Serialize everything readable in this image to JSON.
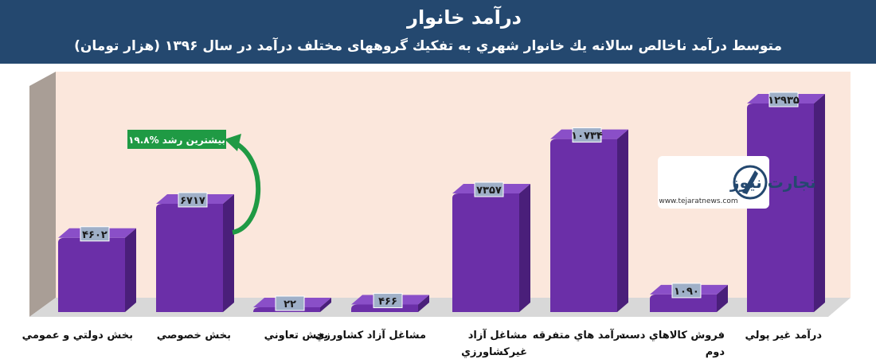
{
  "header": {
    "title": "درآمد خانوار",
    "subtitle": "متوسط درآمد ناخالص سالانه يك خانوار شهري به تفكيك گروههای مختلف درآمد در سال ۱۳۹۶ (هزار تومان)"
  },
  "colors": {
    "header_bg": "#24486f",
    "bar_front": "#6b2fa8",
    "bar_side": "#4a1f7a",
    "bar_top": "#8a4fc8",
    "back_wall": "#fbe7dc",
    "side_wall": "#a99e96",
    "floor": "#d8d8d8",
    "label_box": "#9fb0c8",
    "arrow": "#1f9a44"
  },
  "annotation": {
    "text": "بیشترین رشد %۱۹.۸"
  },
  "logo": {
    "text": "تجارت نیوز",
    "url": "www.tejaratnews.com"
  },
  "chart_data": {
    "type": "bar",
    "title": "درآمد خانوار",
    "subtitle": "متوسط درآمد ناخالص سالانه يك خانوار شهري به تفكيك گروههای مختلف درآمد در سال ۱۳۹۶ (هزار تومان)",
    "categories": [
      "بخش دولتي و عمومي",
      "بخش خصوصي",
      "بخش تعاوني",
      "مشاغل آزاد كشاورزي",
      "مشاغل آزاد غيركشاورزي",
      "درآمد هاي متفرقه",
      "فروش كالاهاي دست دوم",
      "درآمد غير پولي"
    ],
    "values": [
      4602,
      6717,
      22,
      466,
      7357,
      10734,
      1090,
      12935
    ],
    "value_labels": [
      "۴۶۰۲",
      "۶۷۱۷",
      "۲۲",
      "۴۶۶",
      "۷۳۵۷",
      "۱۰۷۳۴",
      "۱۰۹۰",
      "۱۲۹۳۵"
    ],
    "xlabel": "",
    "ylabel": "",
    "ylim": [
      0,
      14000
    ],
    "grid": false,
    "legend": "none"
  }
}
